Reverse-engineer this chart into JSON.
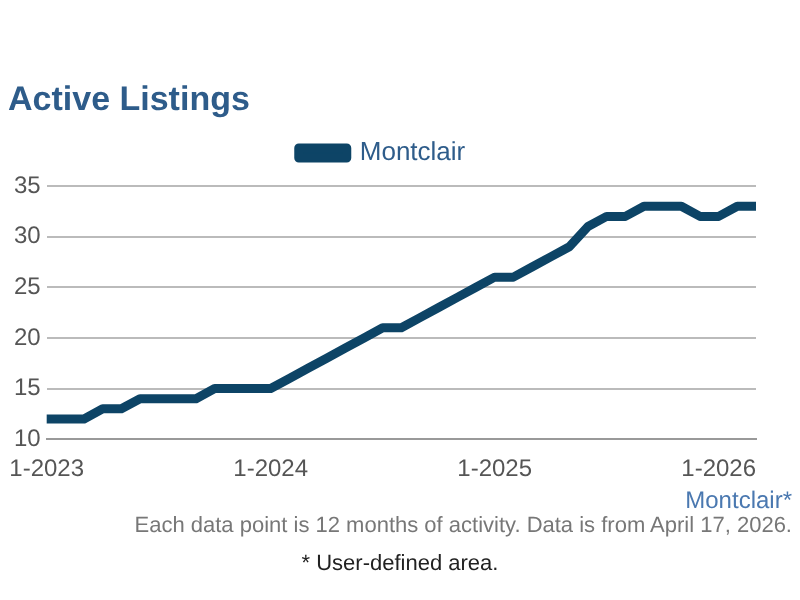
{
  "chart_data": {
    "type": "line",
    "title": "Active Listings",
    "x": [
      "2023-01",
      "2023-02",
      "2023-03",
      "2023-04",
      "2023-05",
      "2023-06",
      "2023-07",
      "2023-08",
      "2023-09",
      "2023-10",
      "2023-11",
      "2023-12",
      "2024-01",
      "2024-02",
      "2024-03",
      "2024-04",
      "2024-05",
      "2024-06",
      "2024-07",
      "2024-08",
      "2024-09",
      "2024-10",
      "2024-11",
      "2024-12",
      "2025-01",
      "2025-02",
      "2025-03",
      "2025-04",
      "2025-05",
      "2025-06",
      "2025-07",
      "2025-08",
      "2025-09",
      "2025-10",
      "2025-11",
      "2025-12",
      "2026-01",
      "2026-02",
      "2026-03"
    ],
    "series": [
      {
        "name": "Montclair",
        "color": "#0d4466",
        "values": [
          12,
          12,
          12,
          13,
          13,
          14,
          14,
          14,
          14,
          15,
          15,
          15,
          15,
          16,
          17,
          18,
          19,
          20,
          21,
          21,
          22,
          23,
          24,
          25,
          26,
          26,
          27,
          28,
          29,
          31,
          32,
          32,
          33,
          33,
          33,
          32,
          32,
          33,
          33
        ]
      }
    ],
    "xlim": [
      "2023-01",
      "2026-03"
    ],
    "xticks": [
      {
        "value": "2023-01",
        "label": "1-2023"
      },
      {
        "value": "2024-01",
        "label": "1-2024"
      },
      {
        "value": "2025-01",
        "label": "1-2025"
      },
      {
        "value": "2026-01",
        "label": "1-2026"
      }
    ],
    "ylim": [
      10,
      35
    ],
    "yticks": [
      10,
      15,
      20,
      25,
      30,
      35
    ],
    "grid": "y",
    "legend": "top",
    "marker": "none",
    "line_style": "solid",
    "annotations": [
      "Montclair*",
      "Each data point is 12 months of activity. Data is from April 17, 2026.",
      "* User-defined area."
    ]
  }
}
